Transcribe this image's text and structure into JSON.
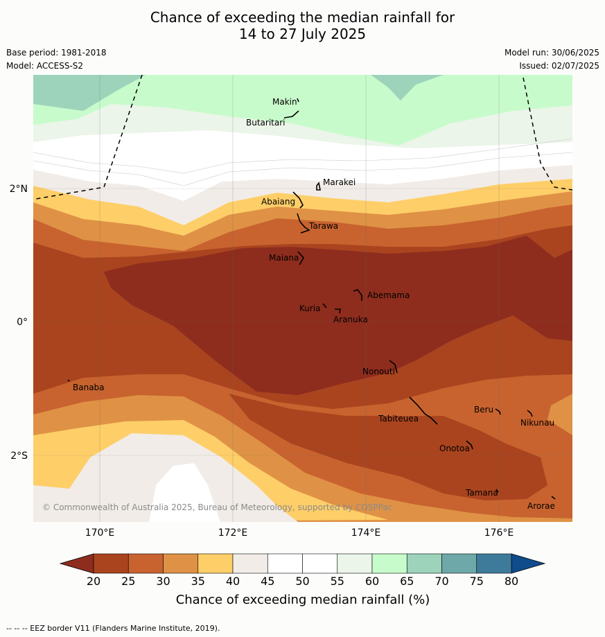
{
  "title": {
    "line1": "Chance of exceeding the median rainfall for",
    "line2": "14 to 27 July 2025"
  },
  "meta": {
    "base_period": "Base period: 1981-2018",
    "model": "Model: ACCESS-S2",
    "model_run": "Model run: 30/06/2025",
    "issued": "Issued: 02/07/2025"
  },
  "map": {
    "lon_labels": [
      "170°E",
      "172°E",
      "174°E",
      "176°E"
    ],
    "lat_labels": [
      "2°N",
      "0°",
      "2°S"
    ],
    "islands": [
      "Makin",
      "Butaritari",
      "Marakei",
      "Abaiang",
      "Tarawa",
      "Maiana",
      "Abemama",
      "Kuria",
      "Aranuka",
      "Banaba",
      "Nonouti",
      "Tabiteuea",
      "Beru",
      "Nikunau",
      "Onotoa",
      "Tamana",
      "Arorae"
    ],
    "copyright": "© Commonwealth of Australia 2025, Bureau of Meteorology, supported by COSPPac"
  },
  "colorbar": {
    "ticks": [
      "20",
      "25",
      "30",
      "35",
      "40",
      "45",
      "50",
      "55",
      "60",
      "65",
      "70",
      "75",
      "80"
    ],
    "label": "Chance of exceeding median rainfall (%)",
    "colors": {
      "below20": "#8e2d1e",
      "b20_25": "#a9441f",
      "b25_30": "#c8632f",
      "b30_35": "#df9245",
      "b35_40": "#fece68",
      "b40_45": "#f1ece7",
      "b45_50": "#ffffff",
      "b50_55": "#ffffff",
      "b55_60": "#ebf5e9",
      "b60_65": "#c8fbcb",
      "b65_70": "#9dd3ba",
      "b70_75": "#6ea8a8",
      "b75_80": "#3e7b9b",
      "above80": "#104b8c"
    }
  },
  "footer": "--  --  -- EEZ border V11 (Flanders Marine Institute, 2019)."
}
